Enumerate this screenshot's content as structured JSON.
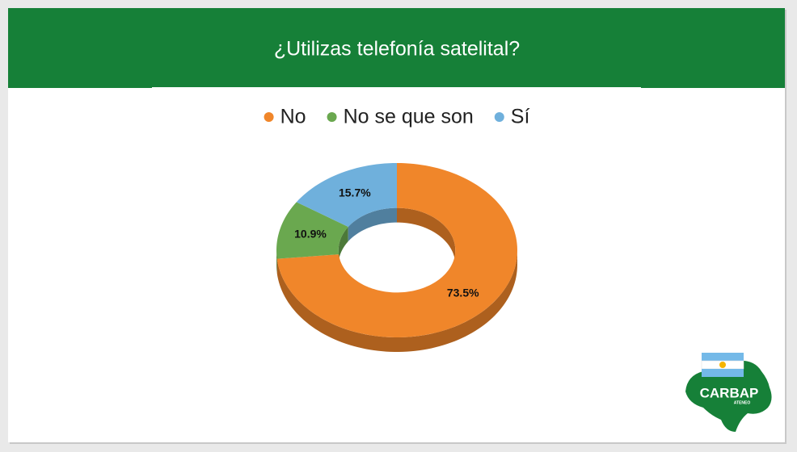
{
  "chart_data": {
    "type": "donut3d",
    "title": "¿Utilizas telefonía satelital?",
    "categories": [
      "No",
      "No se que son",
      "Sí"
    ],
    "values": [
      73.5,
      10.9,
      15.7
    ],
    "value_labels": [
      "73.5%",
      "10.9%",
      "15.7%"
    ],
    "colors": [
      "#f0862a",
      "#6aa84f",
      "#6fb0dc"
    ],
    "legend": "top"
  },
  "logo": {
    "name": "CARBAP",
    "subtitle": "ATENEO"
  }
}
